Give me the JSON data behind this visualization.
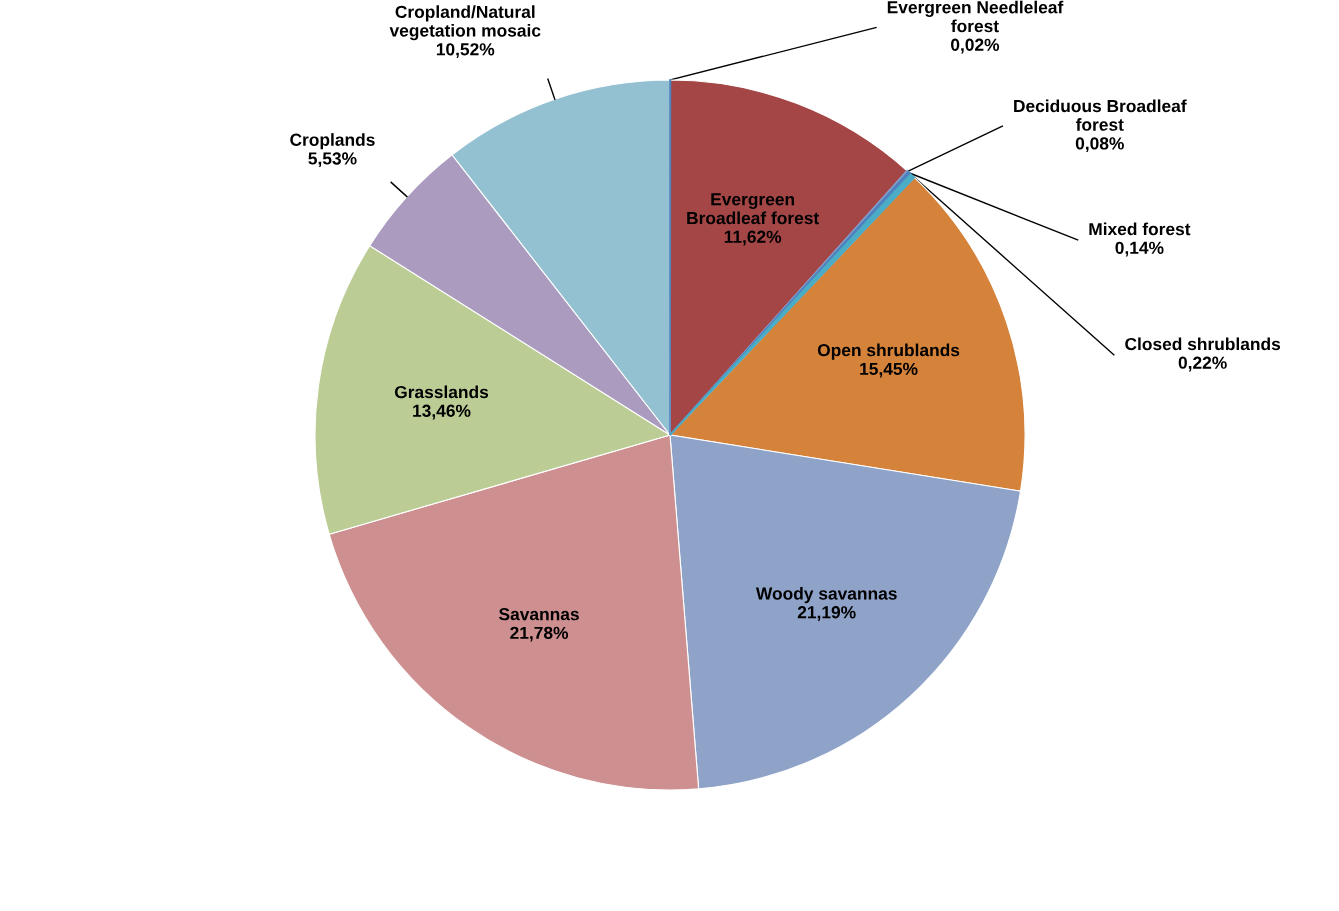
{
  "chart_data": {
    "type": "pie",
    "categories": [
      "Evergreen Needleleaf\nforest",
      "Evergreen\nBroadleaf forest",
      "Deciduous Broadleaf\nforest",
      "Mixed forest",
      "Closed shrublands",
      "Open shrublands",
      "Woody savannas",
      "Savannas",
      "Grasslands",
      "Croplands",
      "Cropland/Natural\nvegetation mosaic"
    ],
    "values": [
      0.02,
      11.62,
      0.08,
      0.14,
      0.22,
      15.45,
      21.19,
      21.78,
      13.46,
      5.53,
      10.52
    ],
    "value_labels": [
      "0,02%",
      "11,62%",
      "0,08%",
      "0,14%",
      "0,22%",
      "15,45%",
      "21,19%",
      "21,78%",
      "13,46%",
      "5,53%",
      "10,52%"
    ],
    "colors": [
      "#4f81bd",
      "#a54646",
      "#7f9ccd",
      "#4f81bd",
      "#4bacc6",
      "#d5823a",
      "#8fa3c8",
      "#cd8f8f",
      "#bbcd95",
      "#aa9bbf",
      "#93c1d2"
    ]
  }
}
